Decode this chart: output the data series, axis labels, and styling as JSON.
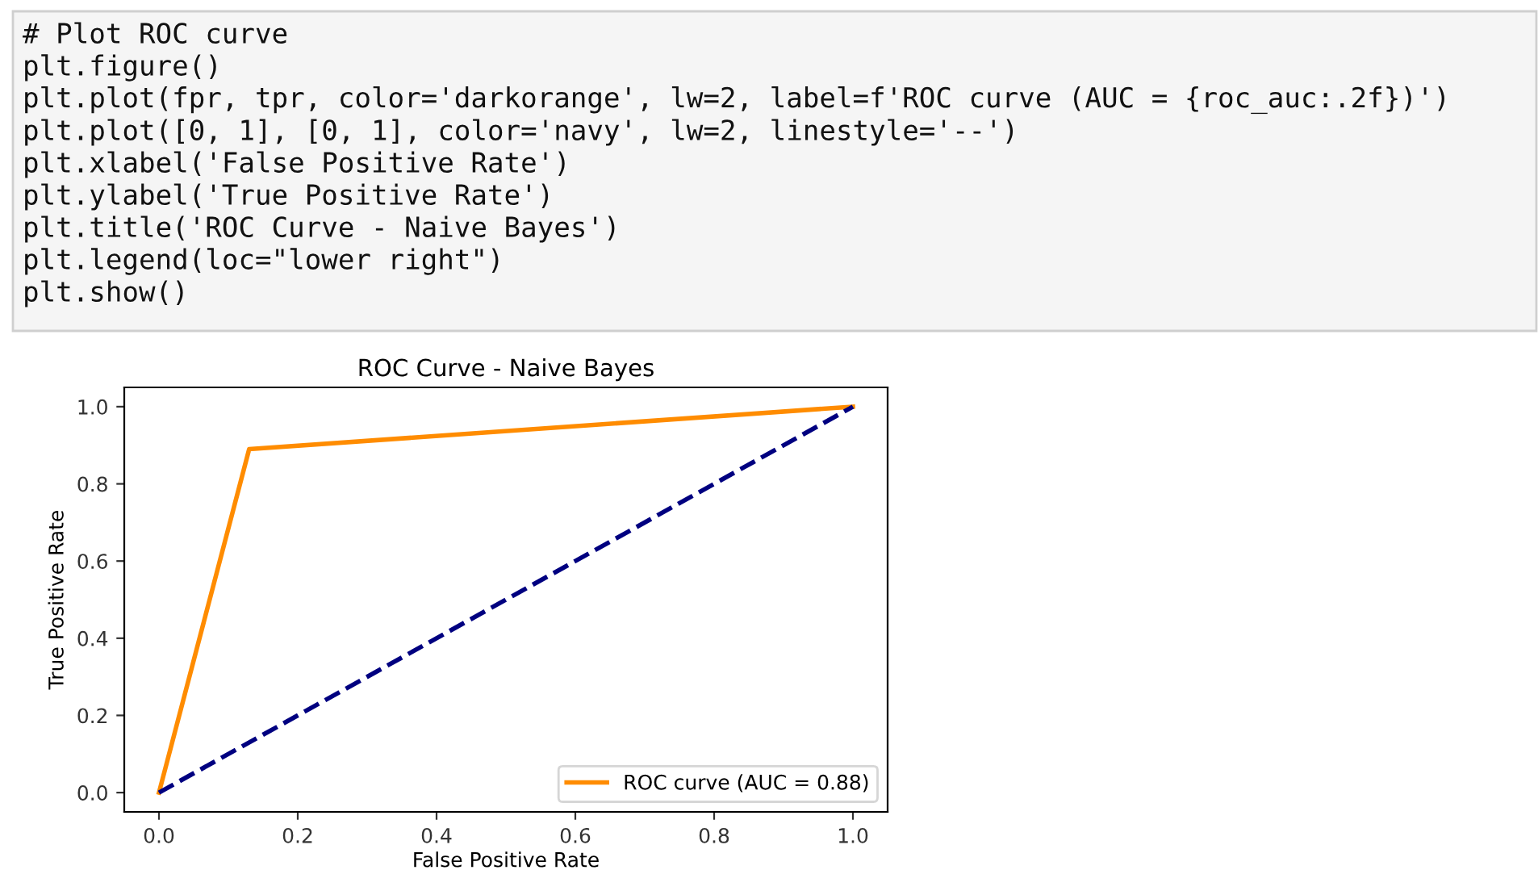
{
  "chart_data": {
    "type": "line",
    "title": "ROC Curve - Naive Bayes",
    "xlabel": "False Positive Rate",
    "ylabel": "True Positive Rate",
    "series": [
      {
        "name": "ROC curve (AUC = 0.88)",
        "color": "#ff8c00",
        "x": [
          0,
          0.13,
          1
        ],
        "values": [
          0,
          0.89,
          1
        ],
        "line_style": "solid"
      },
      {
        "color": "#000080",
        "x": [
          0,
          1
        ],
        "values": [
          0,
          1
        ],
        "line_style": "dashed"
      }
    ],
    "xlim": [
      -0.05,
      1.05
    ],
    "ylim": [
      -0.05,
      1.05
    ],
    "xticks": [
      {
        "value": 0,
        "label": "0.0"
      },
      {
        "value": 0.2,
        "label": "0.2"
      },
      {
        "value": 0.4,
        "label": "0.4"
      },
      {
        "value": 0.6,
        "label": "0.6"
      },
      {
        "value": 0.8,
        "label": "0.8"
      },
      {
        "value": 1,
        "label": "1.0"
      }
    ],
    "yticks": [
      {
        "value": 0,
        "label": "0.0"
      },
      {
        "value": 0.2,
        "label": "0.2"
      },
      {
        "value": 0.4,
        "label": "0.4"
      },
      {
        "value": 0.6,
        "label": "0.6"
      },
      {
        "value": 0.8,
        "label": "0.8"
      },
      {
        "value": 1,
        "label": "1.0"
      }
    ],
    "grid": false,
    "legend": "lower right",
    "marker": "none",
    "annotations": [
      "# Plot ROC curve",
      "plt.figure()",
      "plt.plot(fpr, tpr, color='darkorange', lw=2, label=f'ROC curve (AUC = {roc_auc:.2f})')",
      "plt.plot([0, 1], [0, 1], color='navy', lw=2, linestyle='--')",
      "plt.xlabel('False Positive Rate')",
      "plt.ylabel('True Positive Rate')",
      "plt.title('ROC Curve - Naive Bayes')",
      "plt.legend(loc=\"lower right\")",
      "plt.show()"
    ]
  }
}
